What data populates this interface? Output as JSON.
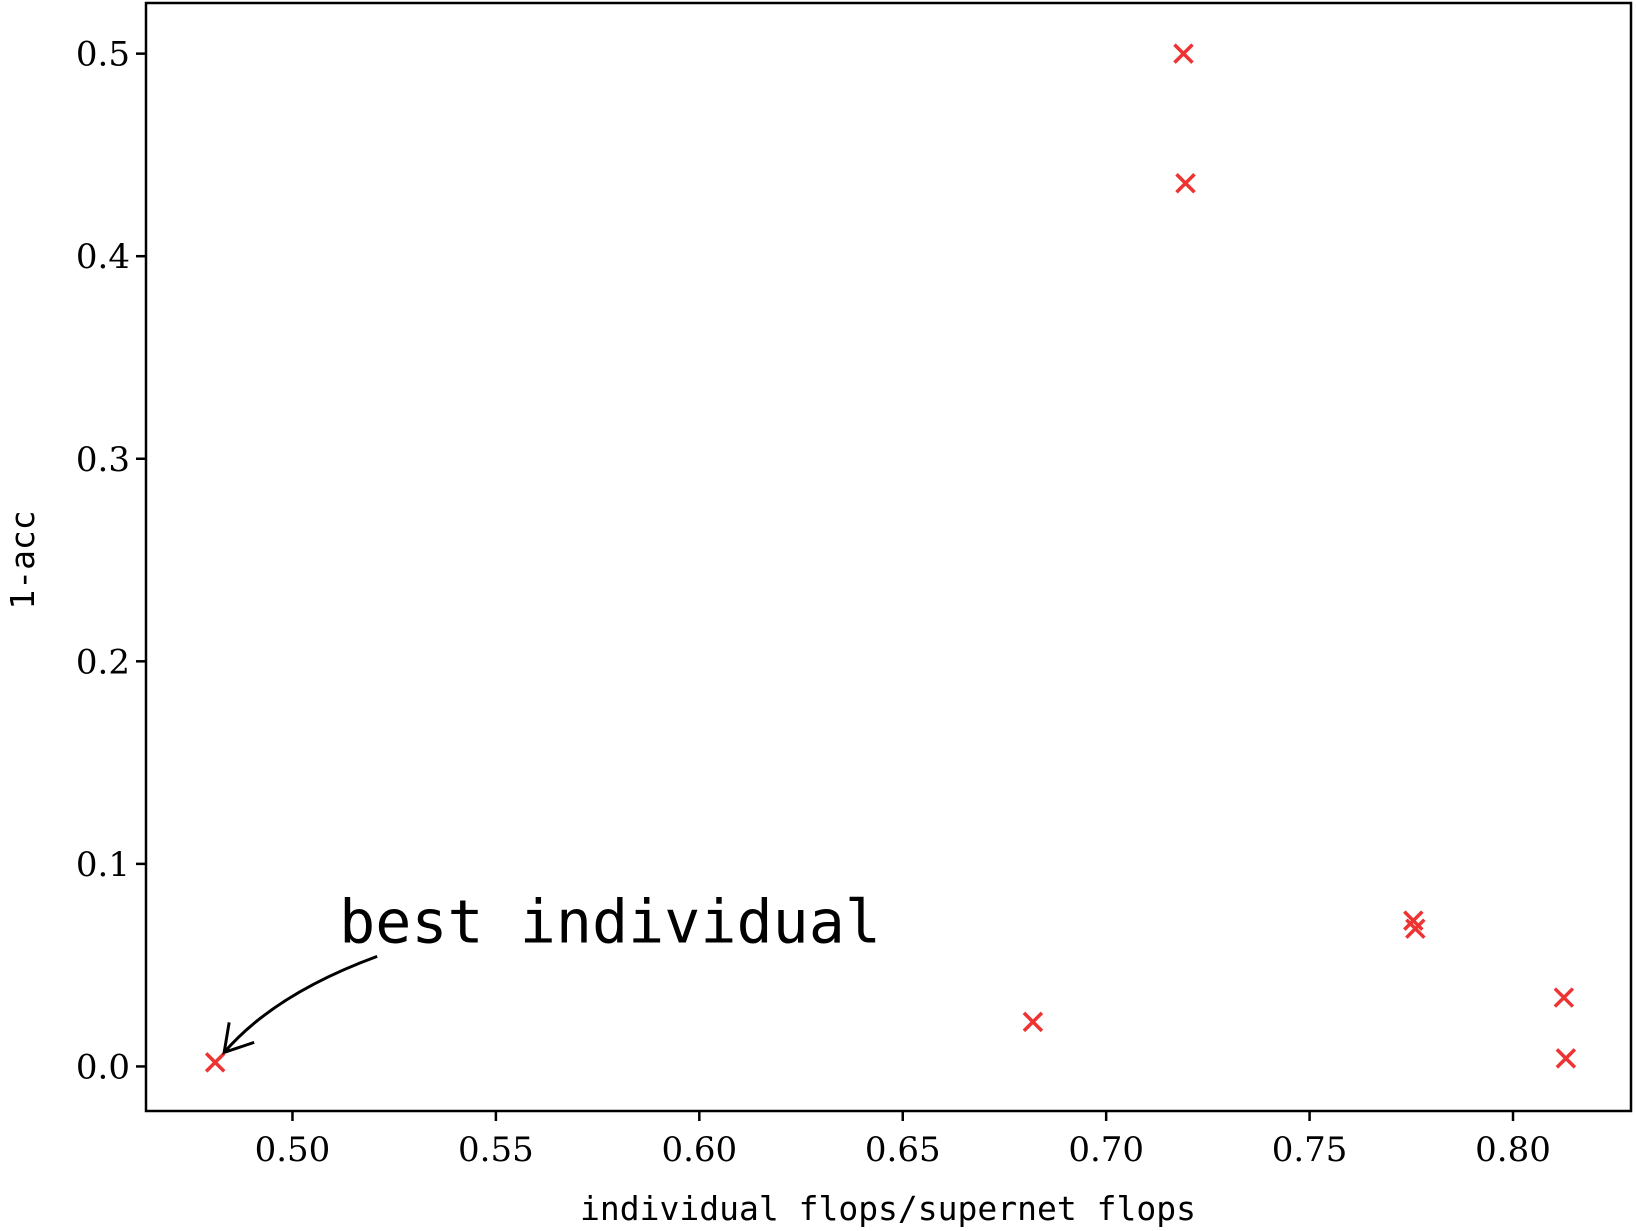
{
  "chart_data": {
    "type": "scatter",
    "xlabel": "individual flops/supernet flops",
    "ylabel": "1-acc",
    "xlim": [
      0.464,
      0.829
    ],
    "ylim": [
      -0.022,
      0.525
    ],
    "xticks": [
      0.5,
      0.55,
      0.6,
      0.65,
      0.7,
      0.75,
      0.8
    ],
    "xtick_labels": [
      "0.50",
      "0.55",
      "0.60",
      "0.65",
      "0.70",
      "0.75",
      "0.80"
    ],
    "yticks": [
      0.0,
      0.1,
      0.2,
      0.3,
      0.4,
      0.5
    ],
    "ytick_labels": [
      "0.0",
      "0.1",
      "0.2",
      "0.3",
      "0.4",
      "0.5"
    ],
    "marker": "x",
    "marker_color": "#ee3333",
    "grid": false,
    "points": [
      {
        "x": 0.481,
        "y": 0.002
      },
      {
        "x": 0.682,
        "y": 0.022
      },
      {
        "x": 0.719,
        "y": 0.5
      },
      {
        "x": 0.7195,
        "y": 0.436
      },
      {
        "x": 0.7755,
        "y": 0.072
      },
      {
        "x": 0.776,
        "y": 0.068
      },
      {
        "x": 0.8125,
        "y": 0.034
      },
      {
        "x": 0.813,
        "y": 0.004
      }
    ],
    "annotations": [
      {
        "text": "best individual",
        "target": {
          "x": 0.481,
          "y": 0.002
        }
      }
    ]
  }
}
